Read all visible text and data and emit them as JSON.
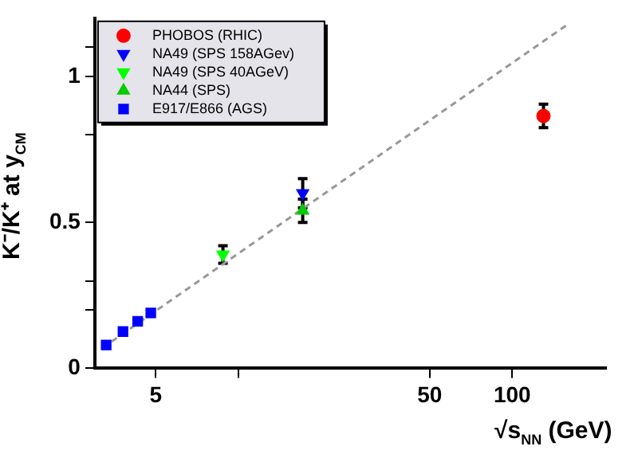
{
  "chart_data": {
    "type": "scatter",
    "xlabel": "√s$_{NN}$ (GeV)",
    "ylabel": "K⁻/K⁺ at y$_{CM}$",
    "log": "x",
    "xlim": [
      3,
      220
    ],
    "xticks": [
      5,
      {
        "value": 10,
        "label": null
      },
      50,
      100
    ],
    "ylim": [
      0,
      1.2
    ],
    "yticks": [
      0,
      {
        "value": 0.2,
        "label": null
      },
      {
        "value": 0.3,
        "label": null
      },
      0.5,
      {
        "value": 0.8,
        "label": null
      },
      1,
      {
        "value": 1.1,
        "label": null
      }
    ],
    "legend": "top left",
    "grid": false,
    "series": [
      {
        "name": "PHOBOS (RHIC)",
        "color": "#ff0000",
        "marker": "circle",
        "x": [
          130
        ],
        "values": [
          0.865
        ],
        "errors": [
          0.04
        ]
      },
      {
        "name": "NA49 (SPS 158AGev)",
        "color": "#0000ff",
        "marker": "triangle-down",
        "x": [
          17.2
        ],
        "values": [
          0.6
        ],
        "errors": [
          0.05
        ]
      },
      {
        "name": "NA49 (SPS 40AGeV)",
        "color": "#00ff00",
        "marker": "triangle-down",
        "x": [
          8.8
        ],
        "values": [
          0.39
        ],
        "errors": [
          0.03
        ]
      },
      {
        "name": "NA44 (SPS)",
        "color": "#00cc00",
        "marker": "triangle",
        "x": [
          17.2
        ],
        "values": [
          0.54
        ],
        "errors": [
          0.04
        ]
      },
      {
        "name": "E917/E866 (AGS)",
        "color": "#0000ff",
        "marker": "square",
        "x": [
          3.3,
          3.8,
          4.3,
          4.8
        ],
        "values": [
          0.08,
          0.126,
          0.161,
          0.19
        ]
      },
      {
        "type": "line",
        "color": "#999999",
        "line_style": "dashed",
        "marker": "none",
        "x": [
          3.2,
          160
        ],
        "values": [
          0.07,
          1.18
        ]
      }
    ]
  }
}
